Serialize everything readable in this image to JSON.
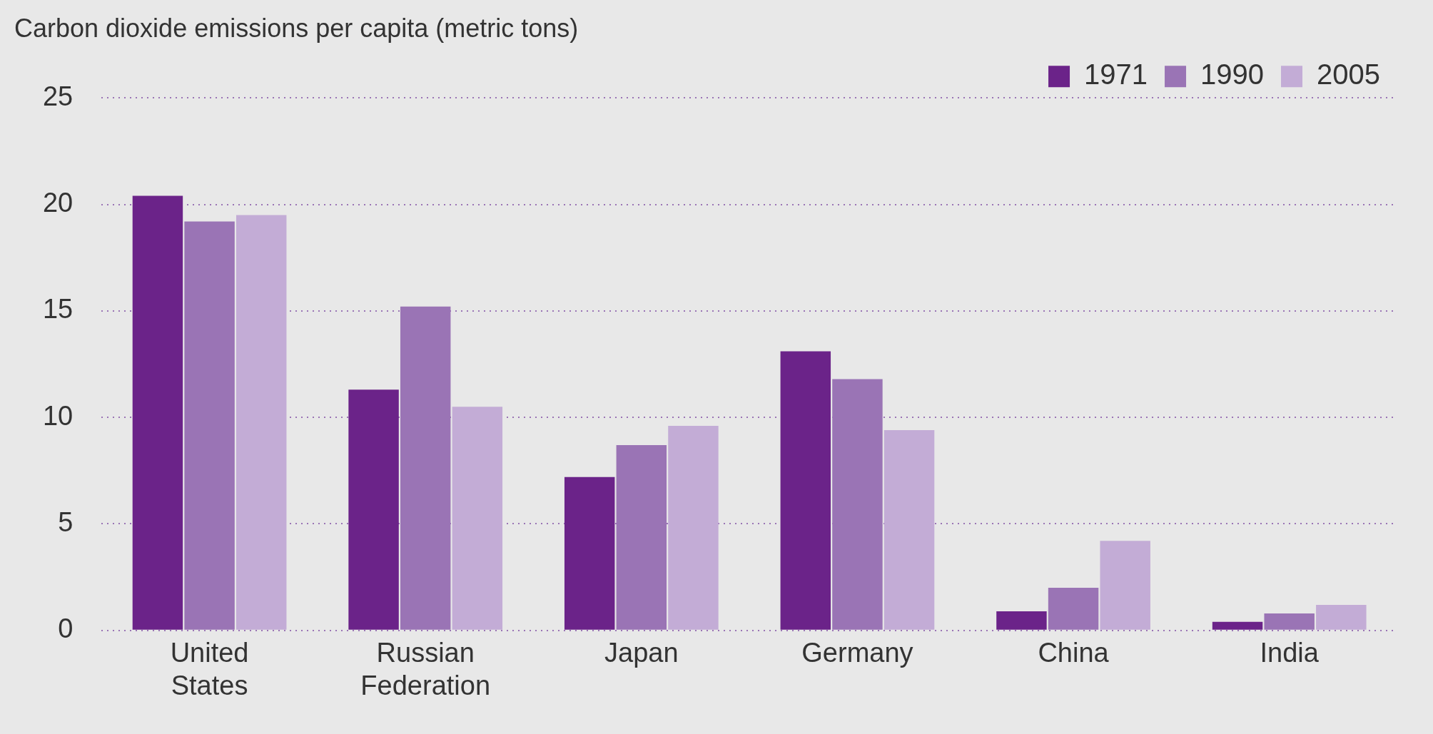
{
  "chart_data": {
    "type": "bar",
    "ylabel": "Carbon dioxide emissions per capita (metric tons)",
    "categories": [
      "United States",
      "Russian Federation",
      "Japan",
      "Germany",
      "China",
      "India"
    ],
    "series": [
      {
        "name": "1971",
        "color": "#6b2389",
        "values": [
          20.4,
          11.3,
          7.2,
          13.1,
          0.9,
          0.4
        ]
      },
      {
        "name": "1990",
        "color": "#9a74b5",
        "values": [
          19.2,
          15.2,
          8.7,
          11.8,
          2.0,
          0.8
        ]
      },
      {
        "name": "2005",
        "color": "#c3acd6",
        "values": [
          19.5,
          10.5,
          9.6,
          9.4,
          4.2,
          1.2
        ]
      }
    ],
    "ylim": [
      0,
      25
    ],
    "yticks": [
      0,
      5,
      10,
      15,
      20,
      25
    ],
    "grid": "y",
    "legend": "top right"
  }
}
